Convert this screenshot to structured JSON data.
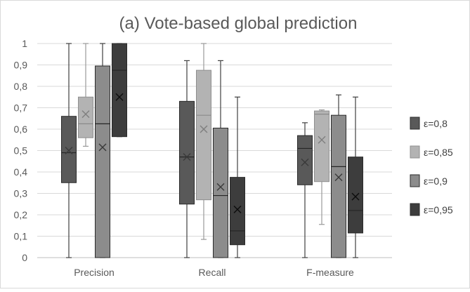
{
  "chart_data": {
    "type": "box",
    "title": "(a) Vote-based global prediction",
    "xlabel": "",
    "ylabel": "",
    "ylim": [
      0,
      1
    ],
    "y_ticks": [
      "0",
      "0,1",
      "0,2",
      "0,3",
      "0,4",
      "0,5",
      "0,6",
      "0,7",
      "0,8",
      "0,9",
      "1"
    ],
    "y_tick_values": [
      0,
      0.1,
      0.2,
      0.3,
      0.4,
      0.5,
      0.6,
      0.7,
      0.8,
      0.9,
      1
    ],
    "grid": true,
    "legend_position": "right",
    "categories": [
      "Precision",
      "Recall",
      "F-measure"
    ],
    "series": [
      {
        "name": "ε=0,8",
        "color": "#595959",
        "boxes": [
          {
            "min": 0.0,
            "q1": 0.35,
            "median": 0.49,
            "q3": 0.66,
            "max": 1.0,
            "mean": 0.5
          },
          {
            "min": 0.0,
            "q1": 0.25,
            "median": 0.47,
            "q3": 0.73,
            "max": 0.92,
            "mean": 0.47
          },
          {
            "min": 0.0,
            "q1": 0.34,
            "median": 0.51,
            "q3": 0.57,
            "max": 0.63,
            "mean": 0.445
          }
        ]
      },
      {
        "name": "ε=0,85",
        "color": "#b3b3b3",
        "boxes": [
          {
            "min": 0.52,
            "q1": 0.56,
            "median": 0.625,
            "q3": 0.75,
            "max": 1.0,
            "mean": 0.67
          },
          {
            "min": 0.085,
            "q1": 0.27,
            "median": 0.665,
            "q3": 0.875,
            "max": 1.0,
            "mean": 0.6
          },
          {
            "min": 0.155,
            "q1": 0.355,
            "median": 0.67,
            "q3": 0.685,
            "max": 0.69,
            "mean": 0.55
          }
        ]
      },
      {
        "name": "ε=0,9",
        "color": "#8c8c8c",
        "boxes": [
          {
            "min": 0.0,
            "q1": 0.0,
            "median": 0.625,
            "q3": 0.895,
            "max": 1.0,
            "mean": 0.515
          },
          {
            "min": 0.0,
            "q1": 0.0,
            "median": 0.29,
            "q3": 0.605,
            "max": 0.92,
            "mean": 0.33
          },
          {
            "min": 0.0,
            "q1": 0.0,
            "median": 0.425,
            "q3": 0.665,
            "max": 0.76,
            "mean": 0.375
          }
        ]
      },
      {
        "name": "ε=0,95",
        "color": "#3d3d3d",
        "boxes": [
          {
            "min": 0.565,
            "q1": 0.565,
            "median": 0.875,
            "q3": 1.0,
            "max": 1.0,
            "mean": 0.75
          },
          {
            "min": 0.0,
            "q1": 0.06,
            "median": 0.125,
            "q3": 0.375,
            "max": 0.75,
            "mean": 0.225
          },
          {
            "min": 0.0,
            "q1": 0.115,
            "median": 0.22,
            "q3": 0.47,
            "max": 0.75,
            "mean": 0.285
          }
        ]
      }
    ]
  }
}
